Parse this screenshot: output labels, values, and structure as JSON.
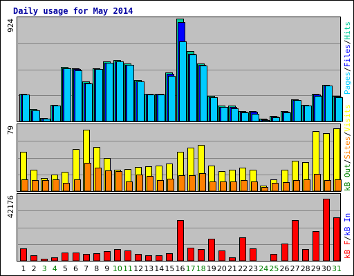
{
  "chart_data": {
    "type": "bar",
    "title": "Daily usage for May 2014",
    "categories": [
      "1",
      "2",
      "3",
      "4",
      "5",
      "6",
      "7",
      "8",
      "9",
      "10",
      "11",
      "12",
      "13",
      "14",
      "15",
      "16",
      "17",
      "18",
      "19",
      "20",
      "21",
      "22",
      "23",
      "24",
      "25",
      "26",
      "27",
      "28",
      "29",
      "30",
      "31"
    ],
    "weekend_days": [
      "3",
      "4",
      "10",
      "11",
      "17",
      "18",
      "24",
      "25",
      "31"
    ],
    "panels": [
      {
        "max_label": "924",
        "ylim": [
          0,
          924
        ],
        "series": [
          {
            "name": "Hits",
            "values": [
              250,
              110,
              30,
              150,
              490,
              480,
              360,
              480,
              540,
              550,
              520,
              370,
              250,
              250,
              440,
              924,
              630,
              520,
              230,
              140,
              140,
              90,
              90,
              24,
              50,
              90,
              200,
              150,
              250,
              330,
              230
            ]
          },
          {
            "name": "Files",
            "values": [
              240,
              100,
              25,
              145,
              480,
              470,
              350,
              470,
              530,
              540,
              510,
              360,
              245,
              245,
              430,
              890,
              610,
              510,
              220,
              130,
              130,
              85,
              85,
              20,
              45,
              85,
              190,
              145,
              240,
              320,
              225
            ]
          },
          {
            "name": "Pages",
            "values": [
              240,
              100,
              25,
              145,
              480,
              460,
              340,
              470,
              530,
              540,
              510,
              360,
              240,
              240,
              410,
              720,
              600,
              500,
              220,
              130,
              120,
              80,
              70,
              15,
              40,
              80,
              190,
              140,
              230,
              320,
              220
            ]
          }
        ]
      },
      {
        "max_label": "79",
        "ylim": [
          0,
          79
        ],
        "series": [
          {
            "name": "Visits",
            "values": [
              47,
              26,
              16,
              20,
              23,
              51,
              74,
              53,
              40,
              26,
              27,
              29,
              30,
              31,
              33,
              47,
              52,
              56,
              31,
              24,
              26,
              28,
              26,
              7,
              14,
              26,
              37,
              35,
              72,
              70,
              76
            ]
          },
          {
            "name": "Sites",
            "values": [
              14,
              13,
              13,
              14,
              10,
              14,
              34,
              28,
              25,
              24,
              12,
              20,
              18,
              13,
              15,
              19,
              19,
              22,
              12,
              12,
              12,
              13,
              12,
              5,
              10,
              11,
              13,
              14,
              21,
              13,
              14
            ]
          }
        ]
      },
      {
        "max_label": "42176",
        "ylim": [
          0,
          42176
        ],
        "series": [
          {
            "name": "kB F",
            "values": [
              8000,
              3500,
              1500,
              2000,
              5500,
              5500,
              4500,
              5000,
              6000,
              7500,
              6500,
              4500,
              3500,
              3500,
              5000,
              26000,
              8500,
              7500,
              14000,
              6500,
              2000,
              15000,
              8000,
              0,
              4500,
              11000,
              26000,
              7500,
              19000,
              40000,
              28000
            ]
          },
          {
            "name": "kB In",
            "values": [
              0,
              0,
              0,
              0,
              0,
              0,
              0,
              0,
              0,
              0,
              0,
              0,
              0,
              0,
              0,
              0,
              0,
              0,
              0,
              0,
              0,
              0,
              0,
              0,
              0,
              0,
              0,
              0,
              0,
              0,
              0
            ]
          },
          {
            "name": "kB Out",
            "values": [
              0,
              0,
              0,
              0,
              0,
              0,
              0,
              0,
              0,
              0,
              0,
              0,
              0,
              0,
              0,
              0,
              0,
              0,
              0,
              0,
              0,
              0,
              0,
              0,
              0,
              0,
              0,
              0,
              0,
              0,
              0
            ]
          }
        ]
      }
    ],
    "colors": {
      "hits": "#00cc99",
      "files": "#0000ff",
      "pages": "#00ccff",
      "visits": "#ffff00",
      "sites": "#ff8000",
      "kbf": "#ff0000",
      "kbin": "#0000ff",
      "kbout": "#008000",
      "plot_bg": "#c0c0c0",
      "frame": "#000000",
      "weekday": "#000000",
      "weekend": "#008000",
      "title": "#0000a0"
    }
  }
}
